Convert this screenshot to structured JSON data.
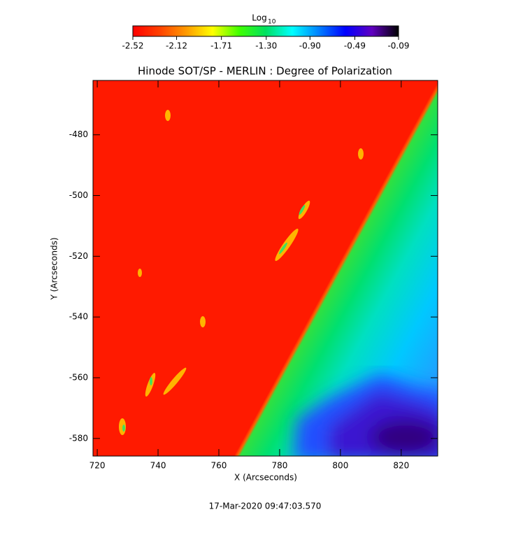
{
  "chart_data": {
    "type": "heatmap",
    "title": "Hinode SOT/SP - MERLIN : Degree of Polarization",
    "xlabel": "X (Arcseconds)",
    "ylabel": "Y (Arcseconds)",
    "xlim": [
      718.6,
      832
    ],
    "xticks": [
      720,
      740,
      760,
      780,
      800,
      820
    ],
    "ylim": [
      -585.8,
      -462.1
    ],
    "yticks": [
      -480,
      -500,
      -520,
      -540,
      -560,
      -580
    ],
    "colorbar": {
      "label": "Log",
      "label_sub": "10",
      "lim": [
        -2.52,
        -0.09
      ],
      "ticks": [
        -2.52,
        -2.12,
        -1.71,
        {
          "value": -1.3,
          "label": "-1.30"
        },
        {
          "value": -0.9,
          "label": "-0.90"
        },
        -0.49,
        -0.09
      ],
      "colormap": [
        "#ff0000",
        "#ff4000",
        "#ff9900",
        "#ffff00",
        "#40ff00",
        "#00e060",
        "#00ffff",
        "#0080ff",
        "#0000ff",
        "#6000c0",
        "#000000"
      ]
    },
    "footer": "17-Mar-2020 09:47:03.570"
  }
}
